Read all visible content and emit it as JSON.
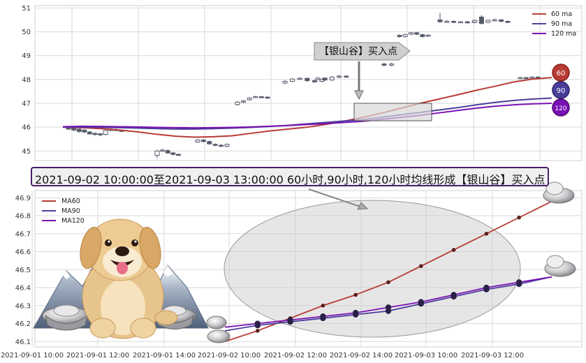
{
  "banner": "2021-09-02 10:00:00至2021-09-03 13:00:00 60小时,90小时,120小时均线形成【银山谷】买入点",
  "callout": "【银山谷】买入点",
  "badges": [
    "60",
    "90",
    "120"
  ],
  "colors": {
    "ma60": "#b83b35",
    "ma90": "#4a3e9a",
    "ma120": "#7a12b5",
    "candle": "#555a6a",
    "grid": "#d9d9d9"
  },
  "icons": [
    "dog-mascot-icon",
    "mountain-icon",
    "silver-ingot-icon"
  ],
  "chart_data": [
    {
      "type": "candlestick",
      "title": "",
      "ylim": [
        44.6,
        51.1
      ],
      "yticks": [
        "45",
        "46",
        "47",
        "48",
        "49",
        "50",
        "51"
      ],
      "grid": true,
      "legend": {
        "placement": "top-right",
        "entries": [
          "60 ma",
          "90 ma",
          "120 ma"
        ]
      },
      "candles": [
        [
          45.98,
          45.92,
          46.02,
          45.88
        ],
        [
          45.96,
          45.88,
          46.0,
          45.83
        ],
        [
          45.92,
          45.82,
          45.95,
          45.76
        ],
        [
          45.88,
          45.8,
          45.92,
          45.74
        ],
        [
          45.8,
          45.72,
          45.84,
          45.68
        ],
        [
          45.74,
          45.7,
          45.78,
          45.64
        ],
        [
          45.72,
          45.68,
          45.76,
          45.62
        ],
        [
          45.7,
          45.86,
          45.9,
          45.66
        ],
        [
          45.86,
          45.9,
          45.96,
          45.84
        ],
        [
          45.9,
          45.88,
          45.94,
          45.84
        ],
        [
          45.88,
          45.82,
          45.9,
          45.8
        ],
        [
          44.82,
          45.0,
          45.05,
          44.7
        ],
        [
          45.0,
          45.04,
          45.1,
          44.96
        ],
        [
          45.02,
          44.92,
          45.06,
          44.88
        ],
        [
          44.92,
          44.86,
          44.96,
          44.8
        ],
        [
          44.86,
          44.84,
          44.9,
          44.8
        ],
        [
          45.38,
          45.46,
          45.5,
          45.34
        ],
        [
          45.46,
          45.4,
          45.5,
          45.36
        ],
        [
          45.4,
          45.3,
          45.44,
          45.26
        ],
        [
          45.28,
          45.24,
          45.32,
          45.2
        ],
        [
          45.24,
          45.2,
          45.3,
          45.18
        ],
        [
          45.2,
          45.28,
          45.32,
          45.16
        ],
        [
          46.95,
          47.05,
          47.1,
          46.9
        ],
        [
          47.05,
          47.1,
          47.15,
          47.0
        ],
        [
          47.15,
          47.22,
          47.26,
          47.1
        ],
        [
          47.25,
          47.28,
          47.32,
          47.22
        ],
        [
          47.28,
          47.26,
          47.3,
          47.22
        ],
        [
          47.26,
          47.24,
          47.3,
          47.2
        ],
        [
          47.85,
          47.92,
          47.98,
          47.8
        ],
        [
          47.92,
          48.02,
          48.06,
          47.88
        ],
        [
          48.02,
          48.05,
          48.1,
          47.98
        ],
        [
          48.05,
          47.95,
          48.08,
          47.9
        ],
        [
          47.95,
          47.9,
          48.0,
          47.86
        ],
        [
          47.92,
          48.0,
          48.04,
          47.88
        ],
        [
          48.0,
          48.06,
          48.1,
          47.96
        ],
        [
          48.06,
          47.98,
          48.1,
          47.94
        ],
        [
          47.98,
          48.1,
          48.14,
          47.94
        ],
        [
          48.1,
          48.14,
          48.2,
          48.05
        ],
        [
          48.14,
          48.12,
          48.18,
          48.08
        ],
        [
          48.65,
          48.6,
          48.7,
          48.55
        ],
        [
          48.6,
          48.65,
          48.7,
          48.55
        ],
        [
          49.85,
          49.8,
          49.9,
          49.75
        ],
        [
          49.8,
          49.88,
          49.92,
          49.76
        ],
        [
          49.9,
          49.96,
          50.0,
          49.86
        ],
        [
          49.96,
          49.9,
          50.0,
          49.86
        ],
        [
          49.88,
          49.8,
          49.92,
          49.76
        ],
        [
          49.82,
          49.86,
          49.9,
          49.78
        ],
        [
          50.5,
          50.42,
          50.8,
          50.38
        ],
        [
          50.42,
          50.44,
          50.5,
          50.38
        ],
        [
          50.44,
          50.4,
          50.48,
          50.36
        ],
        [
          50.4,
          50.42,
          50.46,
          50.36
        ],
        [
          50.42,
          50.38,
          50.46,
          50.34
        ],
        [
          50.4,
          50.44,
          50.5,
          50.36
        ],
        [
          50.4,
          50.48,
          50.52,
          50.36
        ],
        [
          50.62,
          50.35,
          50.7,
          50.3
        ],
        [
          50.4,
          50.48,
          50.52,
          50.36
        ],
        [
          50.48,
          50.5,
          50.56,
          50.44
        ],
        [
          50.5,
          50.44,
          50.54,
          50.4
        ],
        [
          50.44,
          50.4,
          50.48,
          50.36
        ],
        [
          48.05,
          48.08,
          48.12,
          48.02
        ],
        [
          48.08,
          48.06,
          48.1,
          48.02
        ],
        [
          48.06,
          48.1,
          48.14,
          48.02
        ],
        [
          48.1,
          48.08,
          48.14,
          48.04
        ]
      ],
      "series": [
        {
          "name": "60 ma",
          "values": [
            46.0,
            45.98,
            45.94,
            45.88,
            45.8,
            45.7,
            45.62,
            45.58,
            45.6,
            45.64,
            45.74,
            45.84,
            45.92,
            46.0,
            46.12,
            46.26,
            46.42,
            46.6,
            46.8,
            47.0,
            47.18,
            47.36,
            47.55,
            47.72,
            47.9,
            48.02,
            48.08
          ]
        },
        {
          "name": "90 ma",
          "values": [
            46.0,
            46.0,
            45.99,
            45.98,
            45.96,
            45.94,
            45.92,
            45.92,
            45.94,
            45.96,
            45.99,
            46.03,
            46.08,
            46.14,
            46.2,
            46.26,
            46.32,
            46.42,
            46.52,
            46.62,
            46.72,
            46.82,
            46.94,
            47.04,
            47.12,
            47.18,
            47.22
          ]
        },
        {
          "name": "120 ma",
          "values": [
            46.02,
            46.04,
            46.03,
            46.02,
            46.01,
            45.99,
            45.98,
            45.97,
            45.98,
            45.99,
            46.01,
            46.04,
            46.07,
            46.11,
            46.15,
            46.2,
            46.25,
            46.33,
            46.41,
            46.5,
            46.6,
            46.7,
            46.8,
            46.88,
            46.94,
            46.98,
            47.0
          ]
        }
      ],
      "annotation": "【银山谷】买入点"
    },
    {
      "type": "line",
      "title": "",
      "ylim": [
        46.07,
        46.94
      ],
      "yticks": [
        "46.1",
        "46.2",
        "46.3",
        "46.4",
        "46.5",
        "46.6",
        "46.7",
        "46.8",
        "46.9"
      ],
      "xticks": [
        "2021-09-01 10:00",
        "2021-09-01 12:00",
        "2021-09-01 14:00",
        "2021-09-02 10:00",
        "2021-09-02 12:00",
        "2021-09-02 14:00",
        "2021-09-03 10:00",
        "2021-09-03 12:00"
      ],
      "grid": true,
      "legend": {
        "placement": "top-left",
        "entries": [
          "MA60",
          "MA90",
          "MA120"
        ]
      },
      "series": [
        {
          "name": "MA60",
          "values": [
            46.1,
            46.16,
            46.23,
            46.3,
            46.36,
            46.43,
            46.52,
            46.61,
            46.7,
            46.79,
            46.88
          ]
        },
        {
          "name": "MA90",
          "values": [
            46.16,
            46.19,
            46.21,
            46.23,
            46.25,
            46.27,
            46.31,
            46.35,
            46.39,
            46.42,
            46.46
          ]
        },
        {
          "name": "MA120",
          "values": [
            46.18,
            46.2,
            46.22,
            46.24,
            46.26,
            46.29,
            46.32,
            46.36,
            46.4,
            46.43,
            46.46
          ]
        }
      ]
    }
  ]
}
